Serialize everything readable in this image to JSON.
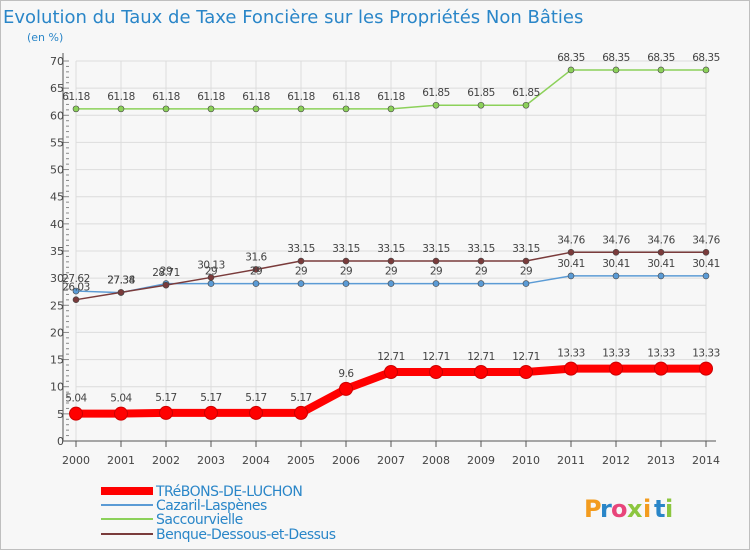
{
  "chart_data": {
    "type": "line",
    "title": "Evolution du Taux de Taxe Foncière sur les Propriétés Non Bâties",
    "subtitle": "(en %)",
    "x": [
      "2000",
      "2001",
      "2002",
      "2003",
      "2004",
      "2005",
      "2006",
      "2007",
      "2008",
      "2009",
      "2010",
      "2011",
      "2012",
      "2013",
      "2014"
    ],
    "ylim": [
      0,
      70
    ],
    "yticks": [
      0,
      5,
      10,
      15,
      20,
      25,
      30,
      35,
      40,
      45,
      50,
      55,
      60,
      65,
      70
    ],
    "grid": true,
    "legend_position": "bottom-left",
    "series": [
      {
        "name": "TRéBONS-DE-LUCHON",
        "color": "#ff0000",
        "values": [
          5.04,
          5.04,
          5.17,
          5.17,
          5.17,
          5.17,
          9.6,
          12.71,
          12.71,
          12.71,
          12.71,
          13.33,
          13.33,
          13.33,
          13.33
        ],
        "labels": [
          "5.04",
          "5.04",
          "5.17",
          "5.17",
          "5.17",
          "5.17",
          "9.6",
          "12.71",
          "12.71",
          "12.71",
          "12.71",
          "13.33",
          "13.33",
          "13.33",
          "13.33"
        ]
      },
      {
        "name": "Cazaril-Laspènes",
        "color": "#5b9bd5",
        "values": [
          27.62,
          27.34,
          29,
          29,
          29,
          29,
          29,
          29,
          29,
          29,
          29,
          30.41,
          30.41,
          30.41,
          30.41
        ],
        "labels": [
          "27.62",
          "27.34",
          "29",
          "29",
          "29",
          "29",
          "29",
          "29",
          "29",
          "29",
          "29",
          "30.41",
          "30.41",
          "30.41",
          "30.41"
        ]
      },
      {
        "name": "Saccourvielle",
        "color": "#8cd15a",
        "values": [
          61.18,
          61.18,
          61.18,
          61.18,
          61.18,
          61.18,
          61.18,
          61.18,
          61.85,
          61.85,
          61.85,
          68.35,
          68.35,
          68.35,
          68.35
        ],
        "labels": [
          "61.18",
          "61.18",
          "61.18",
          "61.18",
          "61.18",
          "61.18",
          "61.18",
          "61.18",
          "61.85",
          "61.85",
          "61.85",
          "68.35",
          "68.35",
          "68.35",
          "68.35"
        ]
      },
      {
        "name": "Benque-Dessous-et-Dessus",
        "color": "#7a3b3b",
        "values": [
          26.03,
          27.38,
          28.71,
          30.13,
          31.6,
          33.15,
          33.15,
          33.15,
          33.15,
          33.15,
          33.15,
          34.76,
          34.76,
          34.76,
          34.76
        ],
        "labels": [
          "26.03",
          "27.38",
          "28.71",
          "30.13",
          "31.6",
          "33.15",
          "33.15",
          "33.15",
          "33.15",
          "33.15",
          "33.15",
          "34.76",
          "34.76",
          "34.76",
          "34.76"
        ]
      }
    ]
  },
  "brand": {
    "letters": [
      "P",
      "r",
      "o",
      "x",
      "i",
      "t",
      "i"
    ],
    "colors": [
      "#f39c1f",
      "#2a86c8",
      "#e8457a",
      "#8cc63f",
      "#f39c1f",
      "#2a86c8",
      "#8cc63f"
    ]
  }
}
